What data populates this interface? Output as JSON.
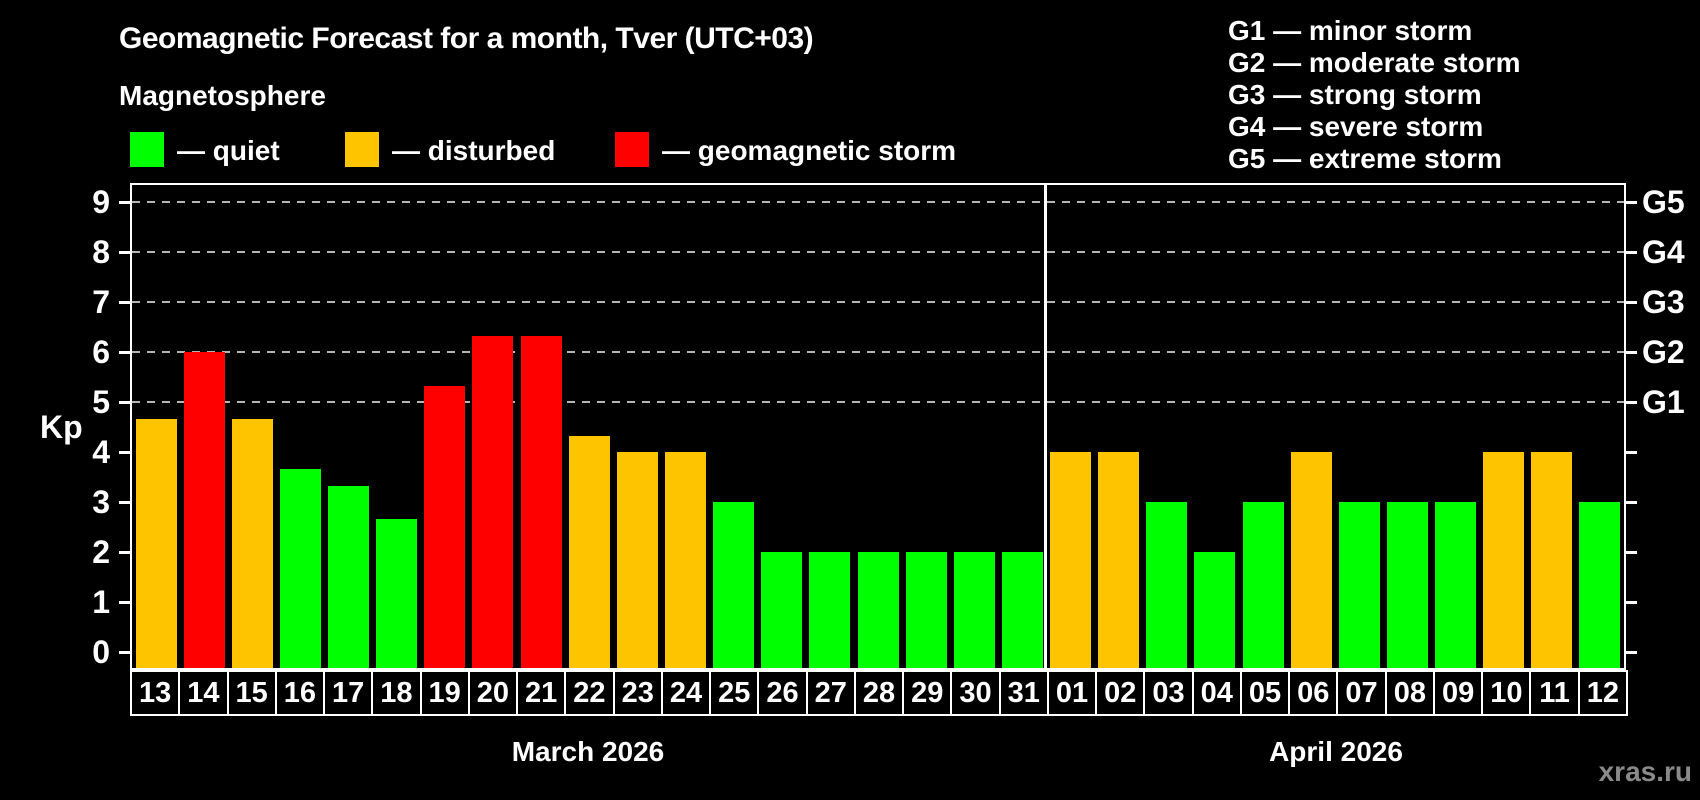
{
  "title": "Geomagnetic Forecast for a month, Tver (UTC+03)",
  "subtitle": "Magnetosphere",
  "legend": {
    "items": [
      {
        "key": "quiet",
        "label": "— quiet",
        "color": "#00ff00"
      },
      {
        "key": "disturbed",
        "label": "— disturbed",
        "color": "#ffc400"
      },
      {
        "key": "storm",
        "label": "— geomagnetic storm",
        "color": "#ff0000"
      }
    ]
  },
  "gscale_legend": [
    "G1 — minor storm",
    "G2 — moderate storm",
    "G3 — strong storm",
    "G4 — severe storm",
    "G5 — extreme storm"
  ],
  "watermark": "xras.ru",
  "chart_data": {
    "type": "bar",
    "ylabel": "Kp",
    "ylim": [
      0,
      9.4
    ],
    "yticks": [
      0,
      1,
      2,
      3,
      4,
      5,
      6,
      7,
      8,
      9
    ],
    "gridlines_at": [
      5,
      6,
      7,
      8,
      9
    ],
    "grid": "dashed horizontal at G-storm levels",
    "legend_position": "top",
    "right_axis_labels": [
      {
        "kp": 5,
        "label": "G1"
      },
      {
        "kp": 6,
        "label": "G2"
      },
      {
        "kp": 7,
        "label": "G3"
      },
      {
        "kp": 8,
        "label": "G4"
      },
      {
        "kp": 9,
        "label": "G5"
      }
    ],
    "status_colors": {
      "quiet": "#00ff00",
      "disturbed": "#ffc400",
      "storm": "#ff0000"
    },
    "months": [
      {
        "label": "March 2026",
        "days": [
          {
            "day": "13",
            "kp": 4.67,
            "status": "disturbed"
          },
          {
            "day": "14",
            "kp": 6.0,
            "status": "storm"
          },
          {
            "day": "15",
            "kp": 4.67,
            "status": "disturbed"
          },
          {
            "day": "16",
            "kp": 3.67,
            "status": "quiet"
          },
          {
            "day": "17",
            "kp": 3.33,
            "status": "quiet"
          },
          {
            "day": "18",
            "kp": 2.67,
            "status": "quiet"
          },
          {
            "day": "19",
            "kp": 5.33,
            "status": "storm"
          },
          {
            "day": "20",
            "kp": 6.33,
            "status": "storm"
          },
          {
            "day": "21",
            "kp": 6.33,
            "status": "storm"
          },
          {
            "day": "22",
            "kp": 4.33,
            "status": "disturbed"
          },
          {
            "day": "23",
            "kp": 4.0,
            "status": "disturbed"
          },
          {
            "day": "24",
            "kp": 4.0,
            "status": "disturbed"
          },
          {
            "day": "25",
            "kp": 3.0,
            "status": "quiet"
          },
          {
            "day": "26",
            "kp": 2.0,
            "status": "quiet"
          },
          {
            "day": "27",
            "kp": 2.0,
            "status": "quiet"
          },
          {
            "day": "28",
            "kp": 2.0,
            "status": "quiet"
          },
          {
            "day": "29",
            "kp": 2.0,
            "status": "quiet"
          },
          {
            "day": "30",
            "kp": 2.0,
            "status": "quiet"
          },
          {
            "day": "31",
            "kp": 2.0,
            "status": "quiet"
          }
        ]
      },
      {
        "label": "April 2026",
        "days": [
          {
            "day": "01",
            "kp": 4.0,
            "status": "disturbed"
          },
          {
            "day": "02",
            "kp": 4.0,
            "status": "disturbed"
          },
          {
            "day": "03",
            "kp": 3.0,
            "status": "quiet"
          },
          {
            "day": "04",
            "kp": 2.0,
            "status": "quiet"
          },
          {
            "day": "05",
            "kp": 3.0,
            "status": "quiet"
          },
          {
            "day": "06",
            "kp": 4.0,
            "status": "disturbed"
          },
          {
            "day": "07",
            "kp": 3.0,
            "status": "quiet"
          },
          {
            "day": "08",
            "kp": 3.0,
            "status": "quiet"
          },
          {
            "day": "09",
            "kp": 3.0,
            "status": "quiet"
          },
          {
            "day": "10",
            "kp": 4.0,
            "status": "disturbed"
          },
          {
            "day": "11",
            "kp": 4.0,
            "status": "disturbed"
          },
          {
            "day": "12",
            "kp": 3.0,
            "status": "quiet"
          }
        ]
      }
    ]
  }
}
